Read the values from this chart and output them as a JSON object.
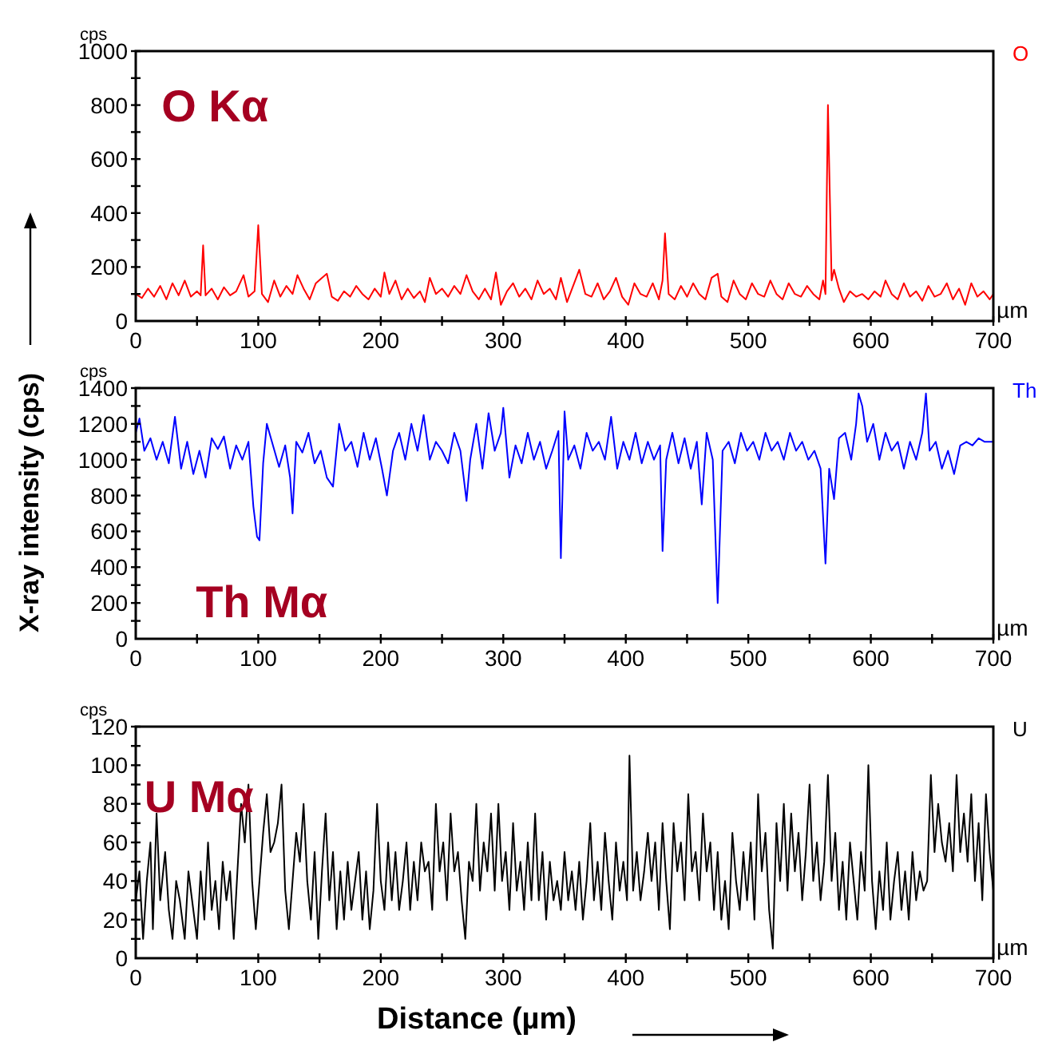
{
  "chart_data": [
    {
      "type": "line",
      "xlabel": "µm",
      "ylabel": "cps",
      "annotations": [
        "O Kα"
      ],
      "legend": "top right",
      "xlim": [
        0,
        700
      ],
      "ylim": [
        0,
        1000
      ],
      "xticks": [
        0,
        {
          "value": 50,
          "label": null
        },
        100,
        {
          "value": 150,
          "label": null
        },
        200,
        {
          "value": 250,
          "label": null
        },
        300,
        {
          "value": 350,
          "label": null
        },
        400,
        {
          "value": 450,
          "label": null
        },
        500,
        {
          "value": 550,
          "label": null
        },
        600,
        {
          "value": 650,
          "label": null
        },
        700
      ],
      "yticks": [
        0,
        {
          "value": 100,
          "label": null
        },
        200,
        {
          "value": 300,
          "label": null
        },
        400,
        {
          "value": 500,
          "label": null
        },
        600,
        {
          "value": 700,
          "label": null
        },
        800,
        {
          "value": 900,
          "label": null
        },
        1000
      ],
      "series": [
        {
          "name": "O",
          "color": "#ff0000",
          "x": [
            0,
            5,
            10,
            15,
            20,
            25,
            30,
            35,
            40,
            45,
            50,
            53,
            55,
            57,
            62,
            67,
            72,
            77,
            82,
            88,
            92,
            97,
            100,
            103,
            108,
            113,
            118,
            123,
            128,
            132,
            137,
            142,
            147,
            152,
            156,
            160,
            165,
            170,
            175,
            180,
            185,
            190,
            195,
            200,
            203,
            207,
            212,
            217,
            222,
            227,
            232,
            236,
            240,
            245,
            250,
            255,
            260,
            265,
            270,
            275,
            280,
            285,
            290,
            294,
            298,
            303,
            308,
            313,
            318,
            323,
            328,
            333,
            338,
            343,
            347,
            352,
            357,
            362,
            367,
            372,
            377,
            382,
            387,
            392,
            397,
            402,
            407,
            412,
            417,
            422,
            427,
            430,
            432,
            435,
            440,
            445,
            450,
            455,
            460,
            465,
            470,
            475,
            478,
            483,
            488,
            493,
            498,
            503,
            508,
            513,
            518,
            523,
            528,
            533,
            538,
            543,
            548,
            553,
            558,
            561,
            563,
            565,
            568,
            570,
            574,
            578,
            583,
            588,
            593,
            598,
            603,
            608,
            612,
            617,
            622,
            627,
            632,
            637,
            642,
            647,
            652,
            657,
            662,
            667,
            672,
            677,
            682,
            687,
            692,
            697,
            700
          ],
          "values": [
            100,
            85,
            120,
            90,
            130,
            80,
            140,
            95,
            150,
            90,
            110,
            95,
            280,
            95,
            120,
            80,
            125,
            95,
            110,
            170,
            90,
            110,
            355,
            100,
            70,
            150,
            90,
            130,
            100,
            170,
            120,
            80,
            140,
            160,
            175,
            90,
            75,
            110,
            90,
            130,
            100,
            80,
            120,
            90,
            180,
            100,
            150,
            80,
            120,
            85,
            110,
            70,
            160,
            100,
            120,
            90,
            130,
            100,
            170,
            110,
            80,
            120,
            80,
            180,
            60,
            110,
            140,
            90,
            120,
            80,
            150,
            100,
            120,
            80,
            160,
            70,
            130,
            190,
            100,
            90,
            140,
            80,
            110,
            160,
            90,
            60,
            140,
            100,
            90,
            140,
            80,
            150,
            325,
            100,
            80,
            130,
            90,
            140,
            100,
            80,
            160,
            175,
            90,
            70,
            150,
            100,
            80,
            140,
            100,
            90,
            150,
            100,
            80,
            140,
            100,
            90,
            130,
            100,
            80,
            150,
            100,
            800,
            150,
            190,
            120,
            70,
            110,
            90,
            100,
            80,
            110,
            90,
            150,
            100,
            80,
            140,
            90,
            110,
            75,
            130,
            90,
            100,
            140,
            80,
            120,
            60,
            140,
            90,
            110,
            80,
            100
          ]
        }
      ]
    },
    {
      "type": "line",
      "xlabel": "µm",
      "ylabel": "cps",
      "annotations": [
        "Th Mα",
        "X-ray intensity (cps)"
      ],
      "legend": "top right",
      "xlim": [
        0,
        700
      ],
      "ylim": [
        0,
        1400
      ],
      "xticks": [
        0,
        {
          "value": 50,
          "label": null
        },
        100,
        {
          "value": 150,
          "label": null
        },
        200,
        {
          "value": 250,
          "label": null
        },
        300,
        {
          "value": 350,
          "label": null
        },
        400,
        {
          "value": 450,
          "label": null
        },
        500,
        {
          "value": 550,
          "label": null
        },
        600,
        {
          "value": 650,
          "label": null
        },
        700
      ],
      "yticks": [
        0,
        {
          "value": 100,
          "label": null
        },
        200,
        {
          "value": 300,
          "label": null
        },
        400,
        {
          "value": 500,
          "label": null
        },
        600,
        {
          "value": 700,
          "label": null
        },
        800,
        {
          "value": 900,
          "label": null
        },
        1000,
        {
          "value": 1100,
          "label": null
        },
        1200,
        {
          "value": 1300,
          "label": null
        },
        1400
      ],
      "series": [
        {
          "name": "Th",
          "color": "#0000ff",
          "x": [
            0,
            3,
            7,
            12,
            17,
            22,
            27,
            32,
            37,
            42,
            47,
            52,
            57,
            62,
            67,
            72,
            77,
            82,
            87,
            92,
            96,
            99,
            101,
            104,
            107,
            112,
            117,
            122,
            126,
            128,
            131,
            136,
            141,
            146,
            151,
            156,
            161,
            166,
            171,
            176,
            181,
            186,
            191,
            196,
            201,
            205,
            210,
            215,
            220,
            225,
            230,
            235,
            240,
            245,
            250,
            255,
            260,
            265,
            270,
            273,
            278,
            283,
            288,
            293,
            298,
            300,
            305,
            310,
            315,
            320,
            325,
            330,
            335,
            340,
            345,
            347,
            350,
            353,
            358,
            363,
            368,
            373,
            378,
            383,
            388,
            393,
            398,
            403,
            408,
            413,
            418,
            423,
            428,
            430,
            433,
            438,
            443,
            448,
            453,
            458,
            462,
            466,
            471,
            475,
            479,
            484,
            489,
            494,
            499,
            504,
            509,
            514,
            519,
            524,
            529,
            534,
            539,
            544,
            549,
            554,
            559,
            563,
            566,
            570,
            574,
            579,
            584,
            588,
            590,
            593,
            597,
            602,
            607,
            612,
            617,
            622,
            627,
            632,
            637,
            642,
            645,
            648,
            653,
            658,
            663,
            668,
            673,
            678,
            683,
            688,
            693,
            700
          ],
          "values": [
            1150,
            1230,
            1050,
            1120,
            1000,
            1100,
            980,
            1240,
            950,
            1100,
            920,
            1050,
            900,
            1120,
            1060,
            1130,
            950,
            1080,
            1000,
            1100,
            740,
            570,
            550,
            980,
            1200,
            1080,
            960,
            1080,
            900,
            700,
            1100,
            1040,
            1150,
            980,
            1050,
            900,
            850,
            1200,
            1050,
            1100,
            960,
            1150,
            1000,
            1120,
            950,
            800,
            1050,
            1150,
            1000,
            1200,
            1050,
            1250,
            1000,
            1100,
            1050,
            980,
            1150,
            1050,
            770,
            1000,
            1200,
            950,
            1260,
            1050,
            1150,
            1290,
            900,
            1080,
            980,
            1150,
            1000,
            1100,
            950,
            1050,
            1160,
            450,
            1270,
            1000,
            1080,
            950,
            1150,
            1050,
            1100,
            1000,
            1240,
            950,
            1100,
            1000,
            1150,
            980,
            1100,
            1000,
            1080,
            490,
            1000,
            1150,
            980,
            1120,
            950,
            1100,
            750,
            1150,
            1000,
            200,
            1050,
            1100,
            980,
            1150,
            1050,
            1100,
            1000,
            1150,
            1050,
            1100,
            1000,
            1150,
            1050,
            1100,
            1000,
            1050,
            950,
            420,
            950,
            780,
            1120,
            1150,
            1000,
            1200,
            1370,
            1300,
            1100,
            1200,
            1000,
            1150,
            1050,
            1100,
            950,
            1100,
            1000,
            1150,
            1370,
            1050,
            1100,
            950,
            1050,
            920,
            1080,
            1100,
            1080,
            1120,
            1100,
            1100
          ]
        }
      ]
    },
    {
      "type": "line",
      "xlabel": "µm",
      "ylabel": "cps",
      "annotations": [
        "U Mα",
        "Distance (µm)"
      ],
      "legend": "top right",
      "xlim": [
        0,
        700
      ],
      "ylim": [
        0,
        120
      ],
      "xticks": [
        0,
        {
          "value": 50,
          "label": null
        },
        100,
        {
          "value": 150,
          "label": null
        },
        200,
        {
          "value": 250,
          "label": null
        },
        300,
        {
          "value": 350,
          "label": null
        },
        400,
        {
          "value": 450,
          "label": null
        },
        500,
        {
          "value": 550,
          "label": null
        },
        600,
        {
          "value": 650,
          "label": null
        },
        700
      ],
      "yticks": [
        0,
        {
          "value": 10,
          "label": null
        },
        20,
        {
          "value": 30,
          "label": null
        },
        40,
        {
          "value": 50,
          "label": null
        },
        60,
        {
          "value": 70,
          "label": null
        },
        80,
        {
          "value": 90,
          "label": null
        },
        100,
        {
          "value": 110,
          "label": null
        },
        120
      ],
      "series": [
        {
          "name": "U",
          "color": "#000000",
          "x": [
            0,
            3,
            6,
            9,
            12,
            14,
            17,
            20,
            24,
            27,
            30,
            33,
            36,
            40,
            43,
            46,
            50,
            53,
            56,
            59,
            62,
            65,
            68,
            71,
            74,
            77,
            80,
            83,
            86,
            89,
            92,
            95,
            98,
            101,
            104,
            107,
            110,
            113,
            116,
            119,
            122,
            125,
            128,
            131,
            134,
            137,
            140,
            143,
            146,
            149,
            152,
            155,
            158,
            161,
            164,
            167,
            170,
            173,
            176,
            179,
            182,
            185,
            188,
            191,
            194,
            197,
            200,
            203,
            206,
            209,
            212,
            215,
            218,
            221,
            224,
            227,
            230,
            233,
            236,
            239,
            242,
            245,
            248,
            251,
            254,
            257,
            260,
            263,
            266,
            269,
            272,
            275,
            278,
            281,
            284,
            287,
            290,
            293,
            296,
            299,
            302,
            305,
            308,
            311,
            314,
            317,
            320,
            323,
            326,
            329,
            332,
            335,
            338,
            341,
            344,
            347,
            350,
            353,
            356,
            359,
            362,
            365,
            368,
            371,
            374,
            377,
            380,
            383,
            386,
            389,
            392,
            395,
            398,
            401,
            403,
            406,
            409,
            412,
            415,
            418,
            421,
            424,
            427,
            430,
            433,
            436,
            439,
            442,
            445,
            448,
            451,
            454,
            457,
            460,
            463,
            466,
            469,
            472,
            475,
            478,
            481,
            484,
            487,
            490,
            493,
            496,
            499,
            502,
            505,
            508,
            511,
            514,
            517,
            520,
            523,
            526,
            529,
            532,
            535,
            538,
            541,
            544,
            547,
            550,
            553,
            556,
            559,
            562,
            565,
            568,
            571,
            574,
            577,
            580,
            583,
            586,
            589,
            592,
            595,
            598,
            601,
            604,
            607,
            610,
            613,
            616,
            619,
            622,
            625,
            628,
            631,
            634,
            637,
            640,
            643,
            646,
            649,
            652,
            655,
            658,
            661,
            664,
            667,
            670,
            673,
            676,
            679,
            682,
            685,
            688,
            691,
            694,
            697,
            700
          ],
          "values": [
            30,
            45,
            10,
            40,
            60,
            15,
            75,
            30,
            55,
            25,
            10,
            40,
            30,
            10,
            45,
            30,
            10,
            45,
            20,
            60,
            25,
            40,
            15,
            50,
            30,
            45,
            10,
            45,
            80,
            60,
            90,
            40,
            15,
            40,
            65,
            85,
            55,
            60,
            70,
            90,
            35,
            15,
            40,
            65,
            50,
            80,
            40,
            20,
            55,
            10,
            45,
            75,
            30,
            55,
            15,
            45,
            20,
            50,
            25,
            40,
            55,
            20,
            45,
            15,
            35,
            80,
            40,
            25,
            60,
            30,
            55,
            25,
            40,
            60,
            25,
            50,
            30,
            60,
            45,
            50,
            25,
            80,
            45,
            60,
            30,
            75,
            45,
            55,
            30,
            10,
            50,
            40,
            80,
            35,
            60,
            45,
            75,
            35,
            80,
            40,
            55,
            25,
            70,
            35,
            50,
            25,
            60,
            30,
            75,
            30,
            55,
            20,
            50,
            30,
            40,
            25,
            55,
            30,
            45,
            25,
            50,
            20,
            40,
            70,
            30,
            50,
            25,
            65,
            40,
            20,
            60,
            35,
            50,
            30,
            105,
            35,
            55,
            30,
            45,
            65,
            40,
            60,
            25,
            70,
            40,
            15,
            70,
            45,
            60,
            30,
            85,
            45,
            55,
            30,
            75,
            45,
            60,
            25,
            55,
            20,
            40,
            15,
            65,
            40,
            25,
            55,
            30,
            60,
            20,
            85,
            45,
            65,
            25,
            5,
            70,
            40,
            80,
            35,
            75,
            45,
            65,
            30,
            55,
            90,
            40,
            60,
            30,
            50,
            95,
            40,
            65,
            25,
            50,
            20,
            60,
            40,
            20,
            55,
            35,
            100,
            40,
            15,
            45,
            25,
            60,
            20,
            40,
            55,
            25,
            45,
            20,
            55,
            30,
            45,
            35,
            40,
            95,
            55,
            80,
            60,
            50,
            70,
            45,
            95,
            55,
            75,
            50,
            85,
            40,
            70,
            30,
            85,
            55,
            35
          ]
        }
      ]
    }
  ]
}
